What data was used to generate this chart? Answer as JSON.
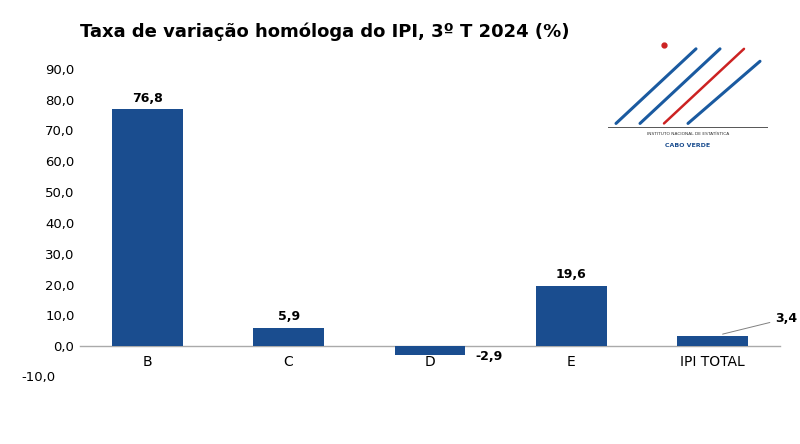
{
  "title": "Taxa de variação homóloga do IPI, 3º T 2024 (%)",
  "categories": [
    "B",
    "C",
    "D",
    "E",
    "IPI TOTAL"
  ],
  "values": [
    76.8,
    5.9,
    -2.9,
    19.6,
    3.4
  ],
  "bar_color": "#1a4d8f",
  "bar_width": 0.5,
  "ylim": [
    -13,
    95
  ],
  "yticks": [
    0.0,
    10.0,
    20.0,
    30.0,
    40.0,
    50.0,
    60.0,
    70.0,
    80.0,
    90.0
  ],
  "ytick_labels": [
    "0,0",
    "10,0",
    "20,0",
    "30,0",
    "40,0",
    "50,0",
    "60,0",
    "70,0",
    "80,0",
    "90,0"
  ],
  "neg10_label": "-10,0",
  "background_color": "#ffffff",
  "label_fontsize": 9,
  "title_fontsize": 13,
  "tick_fontsize": 9.5,
  "xtick_fontsize": 11,
  "value_labels": [
    "76,8",
    "5,9",
    "-2,9",
    "19,6",
    "3,4"
  ]
}
